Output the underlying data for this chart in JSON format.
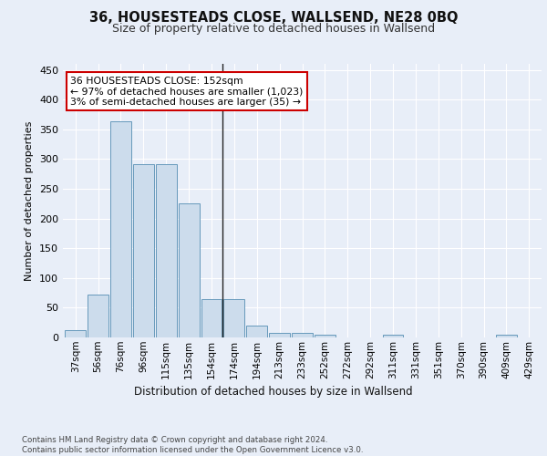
{
  "title": "36, HOUSESTEADS CLOSE, WALLSEND, NE28 0BQ",
  "subtitle": "Size of property relative to detached houses in Wallsend",
  "xlabel": "Distribution of detached houses by size in Wallsend",
  "ylabel": "Number of detached properties",
  "bar_labels": [
    "37sqm",
    "56sqm",
    "76sqm",
    "96sqm",
    "115sqm",
    "135sqm",
    "154sqm",
    "174sqm",
    "194sqm",
    "213sqm",
    "233sqm",
    "252sqm",
    "272sqm",
    "292sqm",
    "311sqm",
    "331sqm",
    "351sqm",
    "370sqm",
    "390sqm",
    "409sqm",
    "429sqm"
  ],
  "bar_values": [
    12,
    72,
    364,
    291,
    291,
    225,
    65,
    65,
    20,
    7,
    7,
    5,
    0,
    0,
    4,
    0,
    0,
    0,
    0,
    4,
    0
  ],
  "bar_color": "#ccdcec",
  "bar_edge_color": "#6699bb",
  "vline_index": 6,
  "annotation_text": "36 HOUSESTEADS CLOSE: 152sqm\n← 97% of detached houses are smaller (1,023)\n3% of semi-detached houses are larger (35) →",
  "annotation_box_color": "#ffffff",
  "annotation_box_edge": "#cc0000",
  "ylim": [
    0,
    460
  ],
  "yticks": [
    0,
    50,
    100,
    150,
    200,
    250,
    300,
    350,
    400,
    450
  ],
  "background_color": "#e8eef8",
  "grid_color": "#ffffff",
  "fig_background": "#e8eef8",
  "footer_line1": "Contains HM Land Registry data © Crown copyright and database right 2024.",
  "footer_line2": "Contains public sector information licensed under the Open Government Licence v3.0."
}
